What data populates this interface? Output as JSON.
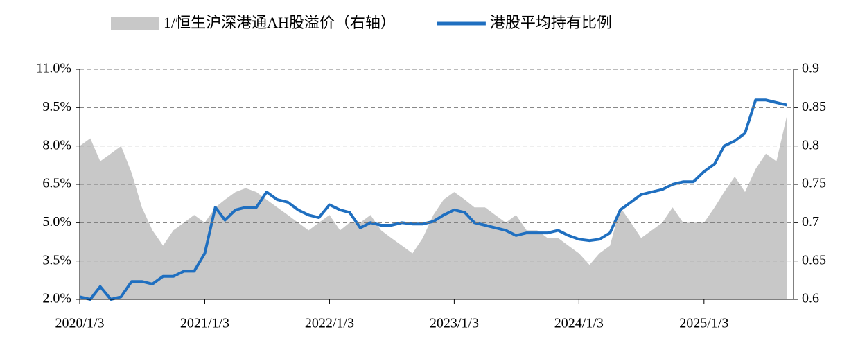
{
  "chart_data": {
    "type": "area-line",
    "x": [
      "2020/1/3",
      "2020/2/3",
      "2020/3/3",
      "2020/4/3",
      "2020/5/3",
      "2020/6/3",
      "2020/7/3",
      "2020/8/3",
      "2020/9/3",
      "2020/10/3",
      "2020/11/3",
      "2020/12/3",
      "2021/1/3",
      "2021/2/3",
      "2021/3/3",
      "2021/4/3",
      "2021/5/3",
      "2021/6/3",
      "2021/7/3",
      "2021/8/3",
      "2021/9/3",
      "2021/10/3",
      "2021/11/3",
      "2021/12/3",
      "2022/1/3",
      "2022/2/3",
      "2022/3/3",
      "2022/4/3",
      "2022/5/3",
      "2022/6/3",
      "2022/7/3",
      "2022/8/3",
      "2022/9/3",
      "2022/10/3",
      "2022/11/3",
      "2022/12/3",
      "2023/1/3",
      "2023/2/3",
      "2023/3/3",
      "2023/4/3",
      "2023/5/3",
      "2023/6/3",
      "2023/7/3",
      "2023/8/3",
      "2023/9/3",
      "2023/10/3",
      "2023/11/3",
      "2023/12/3",
      "2024/1/3",
      "2024/2/3",
      "2024/3/3",
      "2024/4/3",
      "2024/5/3",
      "2024/6/3",
      "2024/7/3",
      "2024/8/3",
      "2024/9/3",
      "2024/10/3",
      "2024/11/3",
      "2024/12/3",
      "2025/1/3",
      "2025/2/3",
      "2025/3/3",
      "2025/4/3",
      "2025/5/3",
      "2025/6/3",
      "2025/7/3",
      "2025/8/3",
      "2025/9/3"
    ],
    "xlim": [
      "2020/1/3",
      "2025/9/22"
    ],
    "xticks": [
      "2020/1/3",
      "2021/1/3",
      "2022/1/3",
      "2023/1/3",
      "2024/1/3",
      "2025/1/3"
    ],
    "ylim": [
      2,
      11
    ],
    "yticks": [
      {
        "value": 2,
        "label": "2.0%"
      },
      {
        "value": 3.5,
        "label": "3.5%"
      },
      {
        "value": 5,
        "label": "5.0%"
      },
      {
        "value": 6.5,
        "label": "6.5%"
      },
      {
        "value": 8,
        "label": "8.0%"
      },
      {
        "value": 9.5,
        "label": "9.5%"
      },
      {
        "value": 11,
        "label": "11.0%"
      }
    ],
    "y2lim": [
      0.6,
      0.9
    ],
    "y2ticks": [
      0.6,
      0.65,
      0.7,
      0.75,
      0.8,
      0.85,
      0.9
    ],
    "grid": true,
    "legend": "top",
    "series": [
      {
        "name": "1/恒生沪深港通AH股溢价（右轴）",
        "type": "area",
        "axis": "y2",
        "color": "#c8c8c8",
        "values": [
          0.8,
          0.81,
          0.78,
          0.79,
          0.8,
          0.765,
          0.72,
          0.69,
          0.67,
          0.69,
          0.7,
          0.71,
          0.7,
          0.72,
          0.73,
          0.74,
          0.745,
          0.74,
          0.73,
          0.72,
          0.71,
          0.7,
          0.69,
          0.7,
          0.71,
          0.69,
          0.7,
          0.7,
          0.71,
          0.69,
          0.68,
          0.67,
          0.66,
          0.68,
          0.71,
          0.73,
          0.74,
          0.73,
          0.72,
          0.72,
          0.71,
          0.7,
          0.71,
          0.69,
          0.69,
          0.68,
          0.68,
          0.67,
          0.66,
          0.645,
          0.66,
          0.67,
          0.72,
          0.7,
          0.68,
          0.69,
          0.7,
          0.72,
          0.7,
          0.7,
          0.7,
          0.72,
          0.74,
          0.76,
          0.74,
          0.77,
          0.79,
          0.78,
          0.84
        ]
      },
      {
        "name": "港股平均持有比例",
        "type": "line",
        "color": "#1f6fc0",
        "values": [
          2.1,
          2.0,
          2.5,
          2.0,
          2.1,
          2.7,
          2.7,
          2.6,
          2.9,
          2.9,
          3.1,
          3.1,
          3.8,
          5.6,
          5.1,
          5.5,
          5.6,
          5.6,
          6.2,
          5.9,
          5.8,
          5.5,
          5.3,
          5.2,
          5.7,
          5.5,
          5.4,
          4.8,
          5.0,
          4.9,
          4.9,
          5.0,
          4.95,
          4.95,
          5.05,
          5.3,
          5.5,
          5.4,
          5.0,
          4.9,
          4.8,
          4.7,
          4.5,
          4.6,
          4.6,
          4.6,
          4.7,
          4.5,
          4.35,
          4.3,
          4.35,
          4.6,
          5.5,
          5.8,
          6.1,
          6.2,
          6.3,
          6.5,
          6.6,
          6.6,
          7.0,
          7.3,
          8.0,
          8.2,
          8.5,
          9.8,
          9.8,
          9.7,
          9.6
        ]
      }
    ]
  }
}
